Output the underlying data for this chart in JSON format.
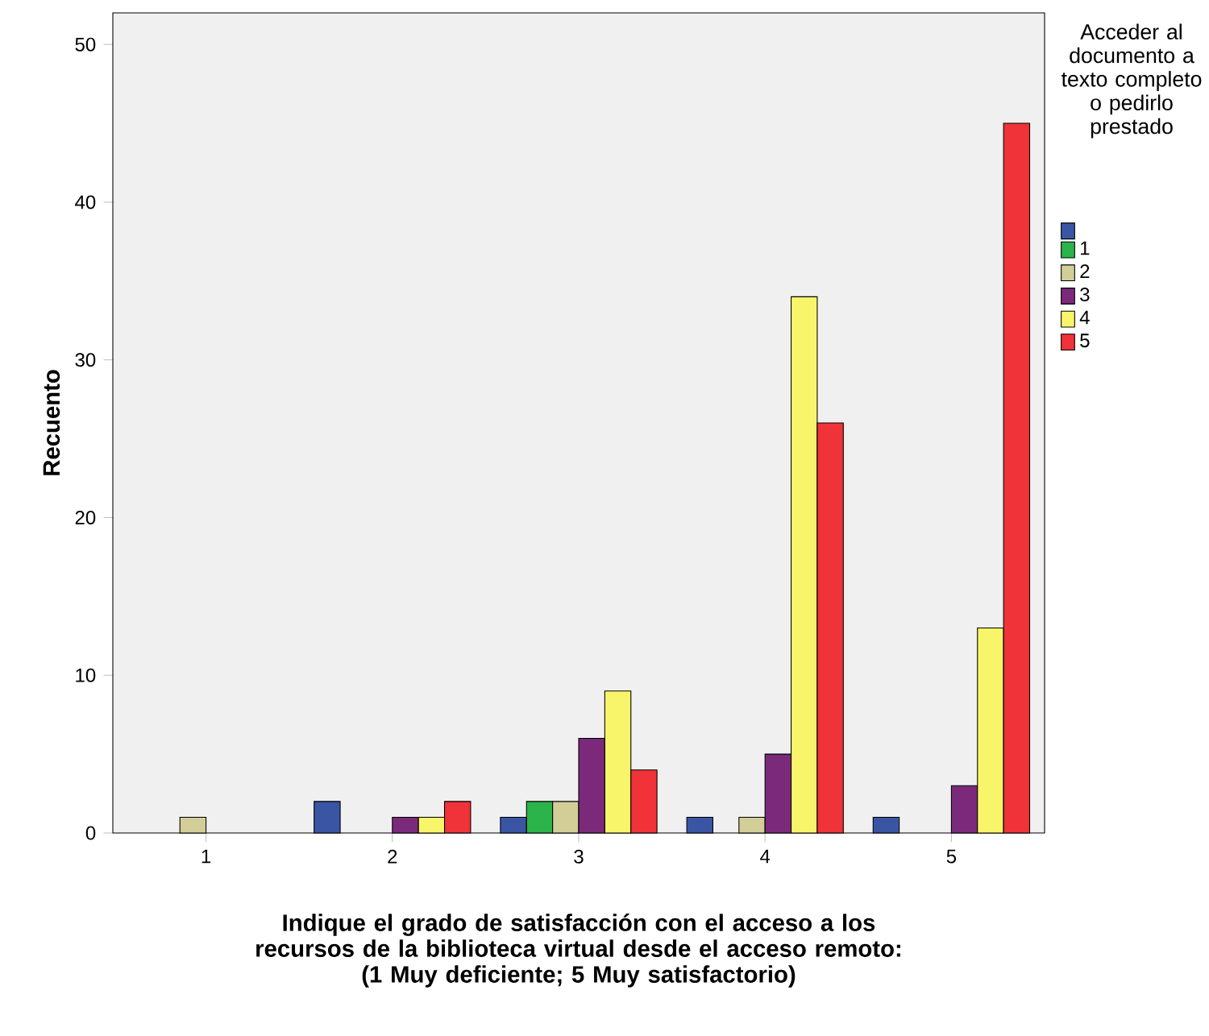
{
  "chart_data": {
    "type": "bar",
    "xlabel": "Indique el grado de satisfacción con el acceso a los recursos de la biblioteca virtual desde el acceso remoto:\n(1 Muy deficiente; 5 Muy satisfactorio)",
    "ylabel": "Recuento",
    "legend_title": "Acceder al documento a texto completo o pedirlo prestado",
    "categories": [
      "1",
      "2",
      "3",
      "4",
      "5"
    ],
    "series": [
      {
        "color": "#3a55a4",
        "values": [
          null,
          2,
          1,
          1,
          1
        ]
      },
      {
        "name": "1",
        "color": "#2ab44a",
        "values": [
          null,
          null,
          2,
          null,
          null
        ]
      },
      {
        "name": "2",
        "color": "#d3ce97",
        "values": [
          1,
          null,
          2,
          1,
          null
        ]
      },
      {
        "name": "3",
        "color": "#7b2a7b",
        "values": [
          null,
          1,
          6,
          5,
          3
        ]
      },
      {
        "name": "4",
        "color": "#f8f56a",
        "values": [
          null,
          1,
          9,
          34,
          13
        ]
      },
      {
        "name": "5",
        "color": "#ef3338",
        "values": [
          null,
          2,
          4,
          26,
          45
        ]
      }
    ],
    "ylim": [
      0,
      52
    ],
    "yticks": [
      0,
      10,
      20,
      30,
      40,
      50
    ],
    "legend": "right",
    "grid": false
  }
}
